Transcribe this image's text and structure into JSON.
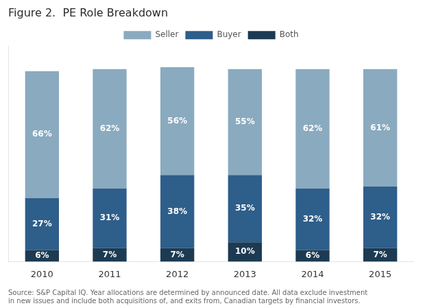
{
  "chart_data": {
    "type": "bar",
    "title": "Figure 2.  PE Role Breakdown",
    "footnote": "Source: S&P Capital IQ. Year allocations are determined by announced date. All data exclude investment\nin new issues and include both acquisitions of, and exits from, Canadian targets by financial investors.",
    "categories": [
      "2010",
      "2011",
      "2012",
      "2013",
      "2014",
      "2015"
    ],
    "series": [
      {
        "name": "Both",
        "color": "#1c3a52",
        "values": [
          6,
          7,
          7,
          10,
          6,
          7
        ],
        "value_labels": [
          "6%",
          "7%",
          "7%",
          "10%",
          "6%",
          "7%"
        ]
      },
      {
        "name": "Buyer",
        "color": "#2e5e8a",
        "values": [
          27,
          31,
          38,
          35,
          32,
          32
        ],
        "value_labels": [
          "27%",
          "31%",
          "38%",
          "35%",
          "32%",
          "32%"
        ]
      },
      {
        "name": "Seller",
        "color": "#8aaabf",
        "values": [
          66,
          62,
          56,
          55,
          62,
          61
        ],
        "value_labels": [
          "66%",
          "62%",
          "56%",
          "55%",
          "62%",
          "61%"
        ]
      }
    ],
    "stacked": true,
    "ylim": [
      0,
      112
    ],
    "grid": false,
    "legend": "top",
    "data_labels": true,
    "tick_labels": "x"
  }
}
